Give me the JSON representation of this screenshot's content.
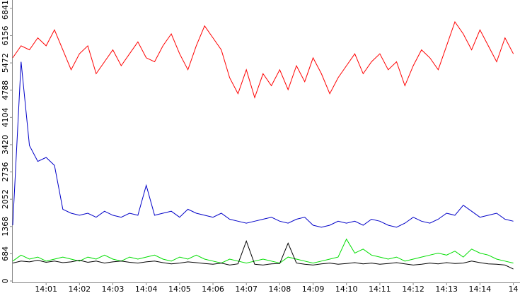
{
  "chart_data": {
    "type": "line",
    "x": [
      840,
      840.25,
      840.5,
      840.75,
      841,
      841.25,
      841.5,
      841.75,
      842,
      842.25,
      842.5,
      842.75,
      843,
      843.25,
      843.5,
      843.75,
      844,
      844.25,
      844.5,
      844.75,
      845,
      845.25,
      845.5,
      845.75,
      846,
      846.25,
      846.5,
      846.75,
      847,
      847.25,
      847.5,
      847.75,
      848,
      848.25,
      848.5,
      848.75,
      849,
      849.25,
      849.5,
      849.75,
      850,
      850.25,
      850.5,
      850.75,
      851,
      851.25,
      851.5,
      851.75,
      852,
      852.25,
      852.5,
      852.75,
      853,
      853.25,
      853.5,
      853.75,
      854,
      854.25,
      854.5,
      854.75,
      855
    ],
    "xlim": [
      840,
      855.2
    ],
    "xticks": [
      {
        "value": 841,
        "label": "14:01"
      },
      {
        "value": 842,
        "label": "14:02"
      },
      {
        "value": 843,
        "label": "14:03"
      },
      {
        "value": 844,
        "label": "14:04"
      },
      {
        "value": 845,
        "label": "14:05"
      },
      {
        "value": 846,
        "label": "14:06"
      },
      {
        "value": 847,
        "label": "14:07"
      },
      {
        "value": 848,
        "label": "14:08"
      },
      {
        "value": 849,
        "label": "14:09"
      },
      {
        "value": 850,
        "label": "14:10"
      },
      {
        "value": 851,
        "label": "14:11"
      },
      {
        "value": 852,
        "label": "14:12"
      },
      {
        "value": 853,
        "label": "14:13"
      },
      {
        "value": 854,
        "label": "14:14"
      },
      {
        "value": 855,
        "label": "14"
      }
    ],
    "ylim": [
      0,
      7050
    ],
    "yticks": [
      0,
      684,
      1368,
      2052,
      2736,
      3420,
      4104,
      4788,
      5472,
      6156,
      6841
    ],
    "series": [
      {
        "color": "#ff0000",
        "values": [
          5600,
          5900,
          5800,
          6100,
          5900,
          6300,
          5800,
          5300,
          5700,
          5900,
          5200,
          5500,
          5800,
          5400,
          5700,
          6000,
          5600,
          5500,
          5900,
          6200,
          5700,
          5300,
          5900,
          6400,
          6100,
          5800,
          5100,
          4700,
          5300,
          4600,
          5200,
          4900,
          5300,
          4800,
          5400,
          5000,
          5600,
          5200,
          4700,
          5100,
          5400,
          5700,
          5200,
          5500,
          5700,
          5300,
          5500,
          4900,
          5400,
          5800,
          5600,
          5300,
          5900,
          6500,
          6200,
          5800,
          6300,
          5900,
          5500,
          6100,
          5700
        ]
      },
      {
        "color": "#0000c8",
        "values": [
          1400,
          5500,
          3400,
          3000,
          3100,
          2900,
          1800,
          1700,
          1650,
          1700,
          1600,
          1750,
          1650,
          1600,
          1700,
          1650,
          2400,
          1650,
          1700,
          1750,
          1600,
          1800,
          1700,
          1650,
          1600,
          1700,
          1550,
          1500,
          1450,
          1500,
          1550,
          1600,
          1500,
          1450,
          1550,
          1600,
          1400,
          1350,
          1400,
          1500,
          1450,
          1500,
          1400,
          1550,
          1500,
          1400,
          1350,
          1450,
          1600,
          1500,
          1450,
          1550,
          1700,
          1650,
          1900,
          1750,
          1600,
          1650,
          1700,
          1550,
          1500
        ]
      },
      {
        "color": "#00dd00",
        "values": [
          500,
          650,
          550,
          600,
          500,
          550,
          600,
          550,
          500,
          600,
          550,
          650,
          550,
          500,
          600,
          550,
          600,
          650,
          550,
          500,
          600,
          550,
          650,
          550,
          500,
          450,
          550,
          500,
          450,
          500,
          550,
          500,
          450,
          600,
          550,
          500,
          450,
          500,
          550,
          600,
          1050,
          700,
          800,
          650,
          600,
          550,
          600,
          500,
          550,
          600,
          650,
          700,
          650,
          750,
          600,
          800,
          700,
          650,
          550,
          500,
          450
        ]
      },
      {
        "color": "#000000",
        "values": [
          450,
          500,
          480,
          520,
          470,
          500,
          460,
          480,
          520,
          470,
          500,
          450,
          480,
          500,
          470,
          450,
          480,
          500,
          460,
          430,
          450,
          480,
          460,
          440,
          420,
          450,
          400,
          430,
          1000,
          420,
          400,
          430,
          440,
          950,
          450,
          420,
          400,
          430,
          450,
          420,
          440,
          460,
          430,
          450,
          420,
          440,
          460,
          430,
          400,
          420,
          450,
          430,
          460,
          440,
          450,
          500,
          460,
          430,
          420,
          400,
          300
        ]
      }
    ]
  }
}
